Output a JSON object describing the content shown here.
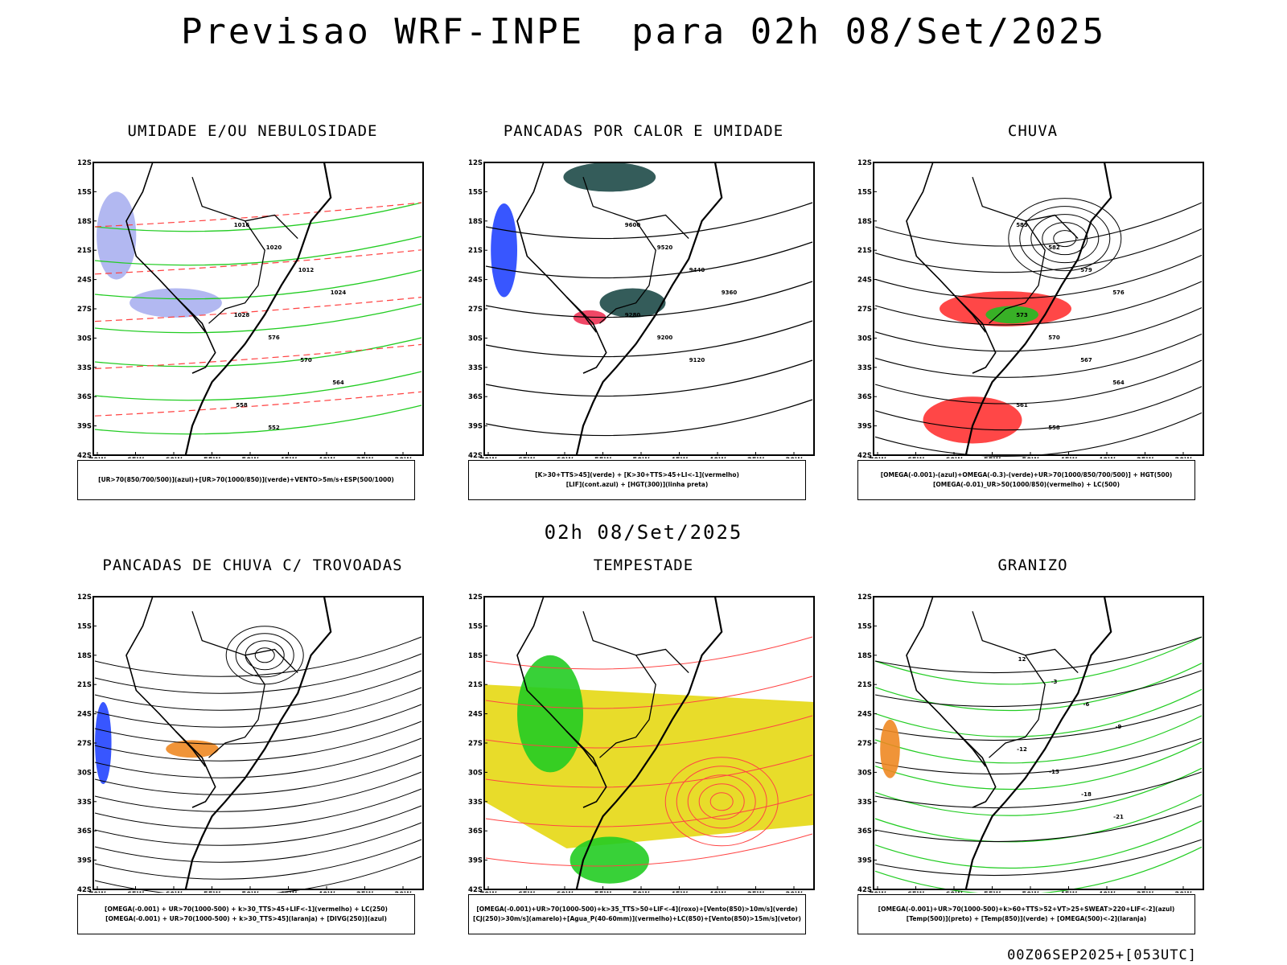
{
  "header": {
    "title": "Previsao WRF-INPE  para 02h 08/Set/2025",
    "mid_date": "02h 08/Set/2025",
    "run_info": "00Z06SEP2025+[053UTC]"
  },
  "axes": {
    "lat_labels": [
      "12S",
      "15S",
      "18S",
      "21S",
      "24S",
      "27S",
      "30S",
      "33S",
      "36S",
      "39S",
      "42S"
    ],
    "lon_labels": [
      "70W",
      "65W",
      "60W",
      "55W",
      "50W",
      "45W",
      "40W",
      "35W",
      "30W"
    ]
  },
  "panels": [
    {
      "title": "UMIDADE E/OU NEBULOSIDADE",
      "legend": [
        "[UR>70(850/700/500)](azul)+[UR>70(1000/850)](verde)+VENTO>5m/s+ESP(500/1000)"
      ],
      "contour_labels": [
        "1016",
        "1020",
        "1012",
        "1024",
        "1028",
        "576",
        "570",
        "564",
        "558",
        "552"
      ],
      "colors": {
        "blue": "#aab0f0",
        "green": "#22cc22",
        "red": "#ff4040"
      }
    },
    {
      "title": "PANCADAS POR CALOR E UMIDADE",
      "legend": [
        "[K>30+TTS>45](verde) + [K>30+TTS>45+LI<-1](vermelho)",
        "[LIF](cont.azul) + [HGT(300)](linha preta)"
      ],
      "contour_labels": [
        "9600",
        "9520",
        "9440",
        "9360",
        "9280",
        "9200",
        "9120"
      ],
      "colors": {
        "teal": "#1e4a48",
        "red": "#ee3355",
        "blue": "#2244ff"
      }
    },
    {
      "title": "CHUVA",
      "legend": [
        "[OMEGA(-0.001)-(azul)+OMEGA(-0.3)-(verde)+UR>70(1000/850/700/500)] + HGT(500)",
        "[OMEGA(-0.01)_UR>50(1000/850)(vermelho) + LC(500)"
      ],
      "contour_labels": [
        "585",
        "582",
        "579",
        "576",
        "573",
        "570",
        "567",
        "564",
        "561",
        "558"
      ],
      "colors": {
        "red": "#ff3333",
        "green": "#22bb22",
        "blue": "#2244ff"
      }
    },
    {
      "title": "PANCADAS DE CHUVA C/ TROVOADAS",
      "legend": [
        "[OMEGA(-0.001) + UR>70(1000-500) + k>30_TTS>45+LIF<-1](vermelho) + LC(250)",
        "[OMEGA(-0.001) + UR>70(1000-500) + k>30_TTS>45](laranja) + [DIVG(250)](azul)"
      ],
      "contour_labels": [],
      "colors": {
        "orange": "#ee8822",
        "blue": "#2244ff"
      }
    },
    {
      "title": "TEMPESTADE",
      "legend": [
        "[OMEGA(-0.001)+UR>70(1000-500)+k>35_TTS>50+LIF<-4](roxo)+[Vento(850)>10m/s](verde)",
        "[CJ(250)>30m/s](amarelo)+[Agua_P(40-60mm)](vermelho)+LC(850)+[Vento(850)>15m/s](vetor)"
      ],
      "contour_labels": [],
      "colors": {
        "yellow": "#e8dc2a",
        "green": "#22cc22",
        "red": "#ff4444"
      }
    },
    {
      "title": "GRANIZO",
      "legend": [
        "[OMEGA(-0.001)+UR>70(1000-500)+k>60+TTS>52+VT>25+SWEAT>220+LIF<-2](azul)",
        "[Temp(500)](preto) + [Temp(850)](verde) + [OMEGA(500)<-2](laranja)"
      ],
      "contour_labels": [
        "12",
        "-3",
        "-6",
        "-9",
        "-12",
        "-15",
        "-18",
        "-21"
      ],
      "colors": {
        "green": "#22cc22",
        "black": "#000000",
        "orange": "#ee8822"
      }
    }
  ]
}
